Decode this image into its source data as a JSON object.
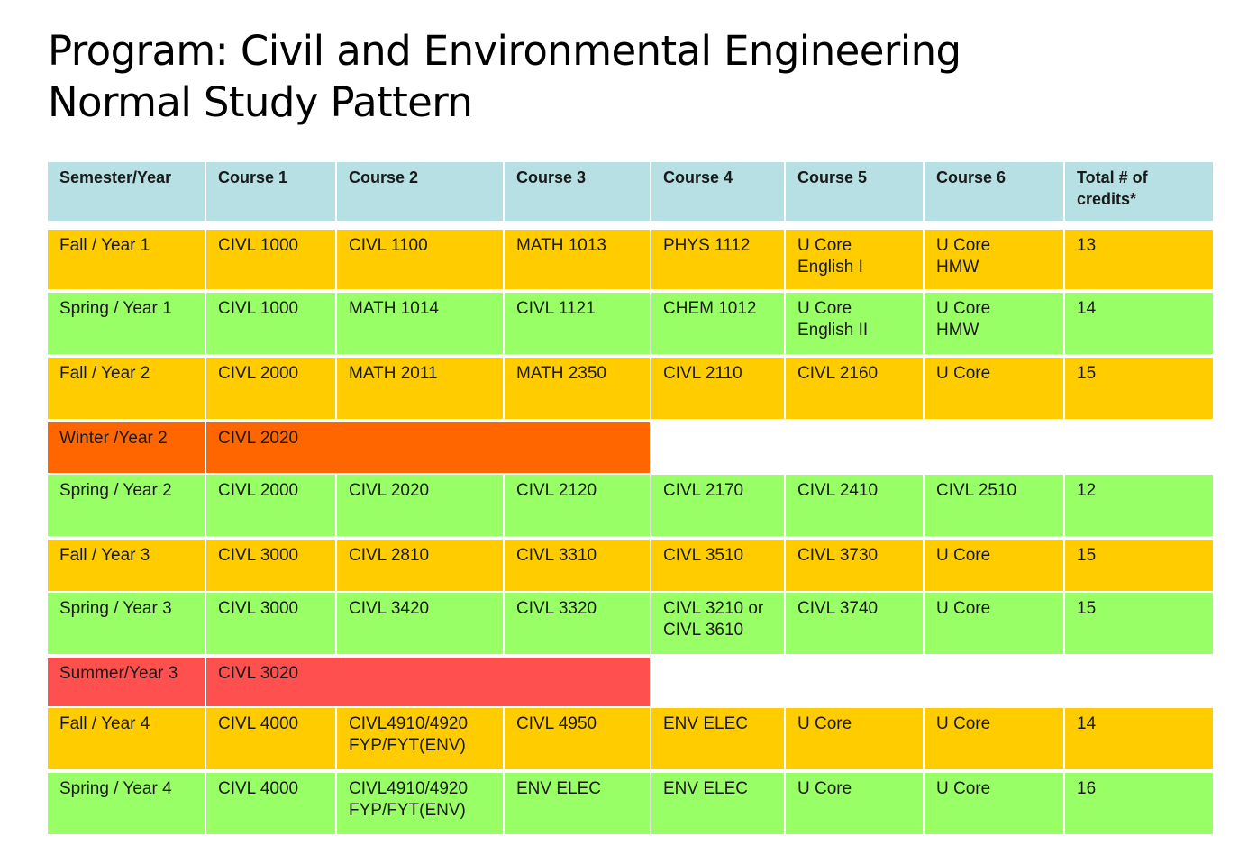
{
  "title": {
    "line1": "Program: Civil and Environmental Engineering",
    "line2": "Normal Study Pattern"
  },
  "colors": {
    "header": "#b7e0e4",
    "fall": "#ffcc00",
    "spring": "#99ff66",
    "winter": "#ff6600",
    "summer": "#ff5050"
  },
  "table": {
    "headers": [
      "Semester/Year",
      "Course 1",
      "Course 2",
      "Course 3",
      "Course 4",
      "Course 5",
      "Course 6",
      "Total # of\ncredits*"
    ],
    "rows": [
      {
        "term": "fall",
        "cells": [
          "Fall / Year 1",
          "CIVL 1000",
          "CIVL 1100",
          "MATH 1013",
          "PHYS 1112",
          "U Core\nEnglish I",
          "U Core\nHMW",
          "13"
        ]
      },
      {
        "term": "spring",
        "cells": [
          "Spring / Year 1",
          "CIVL 1000",
          "MATH 1014",
          "CIVL 1121",
          "CHEM 1012",
          "U Core\nEnglish II",
          "U Core\nHMW",
          "14"
        ]
      },
      {
        "term": "fall",
        "cells": [
          "Fall / Year 2",
          "CIVL 2000",
          "MATH 2011",
          "MATH 2350",
          "CIVL 2110",
          "CIVL 2160",
          "U Core",
          "15"
        ]
      },
      {
        "term": "winter",
        "cells": [
          "Winter /Year 2",
          "CIVL 2020"
        ]
      },
      {
        "term": "spring",
        "cells": [
          "Spring / Year 2",
          "CIVL 2000",
          "CIVL 2020",
          "CIVL 2120",
          "CIVL 2170",
          "CIVL 2410",
          "CIVL 2510",
          "12"
        ]
      },
      {
        "term": "fall",
        "cells": [
          "Fall / Year 3",
          "CIVL 3000",
          "CIVL 2810",
          "CIVL 3310",
          "CIVL 3510",
          "CIVL 3730",
          "U Core",
          "15"
        ]
      },
      {
        "term": "spring",
        "cells": [
          "Spring / Year 3",
          "CIVL 3000",
          "CIVL 3420",
          "CIVL 3320",
          "CIVL 3210 or\nCIVL 3610",
          "CIVL 3740",
          "U Core",
          "15"
        ]
      },
      {
        "term": "summer",
        "cells": [
          "Summer/Year 3",
          "CIVL 3020"
        ]
      },
      {
        "term": "fall",
        "cells": [
          "Fall / Year 4",
          "CIVL 4000",
          "CIVL4910/4920\nFYP/FYT(ENV)",
          "CIVL 4950",
          "ENV ELEC",
          "U Core",
          "U Core",
          "14"
        ]
      },
      {
        "term": "spring",
        "cells": [
          "Spring / Year 4",
          "CIVL 4000",
          "CIVL4910/4920\nFYP/FYT(ENV)",
          "ENV ELEC",
          "ENV ELEC",
          "U Core",
          "U Core",
          "16"
        ]
      }
    ]
  }
}
